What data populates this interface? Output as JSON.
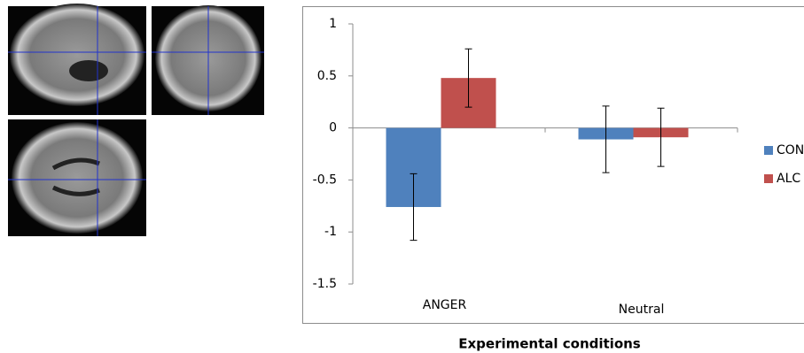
{
  "chart_data": {
    "type": "bar",
    "x_label": "Experimental conditions",
    "categories": [
      "ANGER",
      "Neutral"
    ],
    "series": [
      {
        "name": "CON",
        "color": "#4f81bd",
        "values": [
          -0.76,
          -0.11
        ],
        "errors": [
          0.32,
          0.32
        ]
      },
      {
        "name": "ALC",
        "color": "#c0504d",
        "values": [
          0.48,
          -0.09
        ],
        "errors": [
          0.28,
          0.28
        ]
      }
    ],
    "ylim": [
      -1.5,
      1
    ],
    "yticks": [
      -1.5,
      -1,
      -0.5,
      0,
      0.5,
      1
    ],
    "legend": "right"
  }
}
